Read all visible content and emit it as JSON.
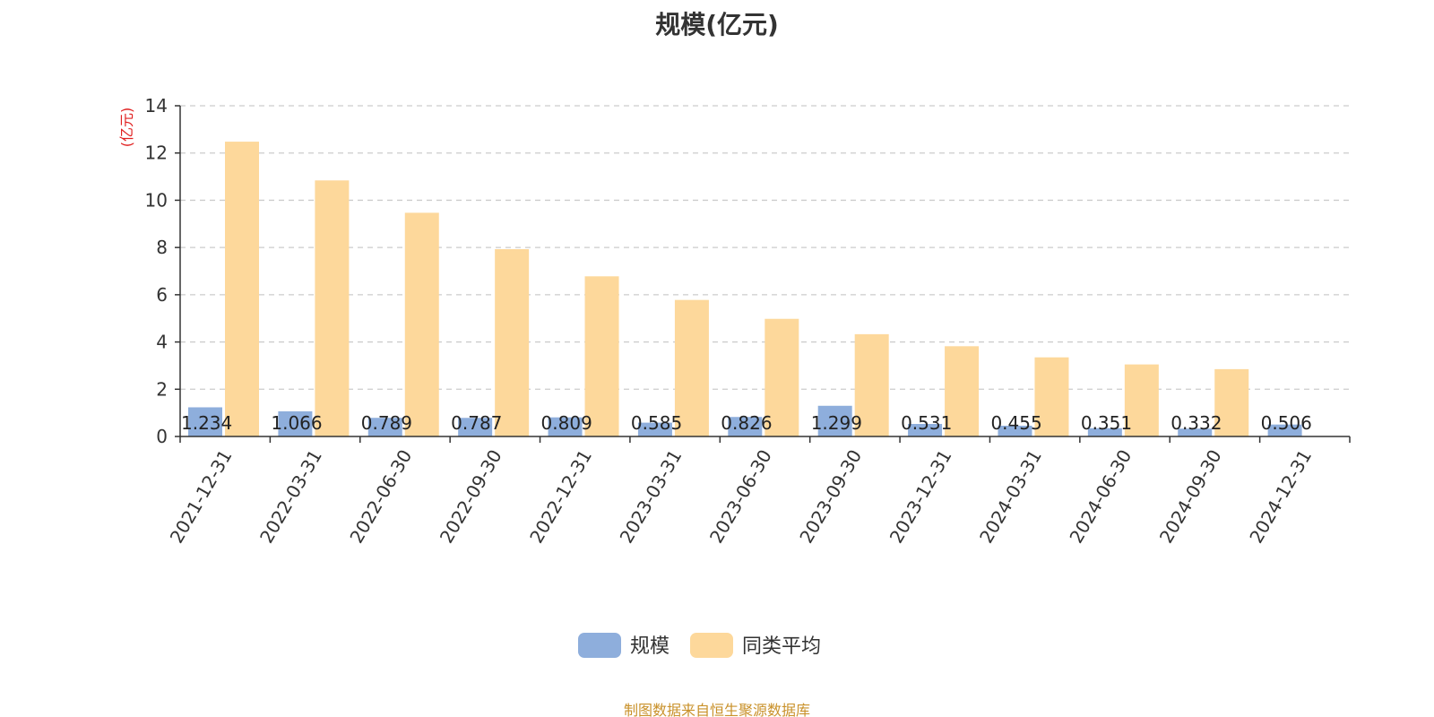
{
  "chart_data": {
    "type": "bar",
    "title": "规模(亿元)",
    "ylabel": "(亿元)",
    "xlabel": "",
    "ylim": [
      0,
      14
    ],
    "yticks": [
      0,
      2,
      4,
      6,
      8,
      10,
      12,
      14
    ],
    "grid": true,
    "legend_position": "bottom-center",
    "categories": [
      "2021-12-31",
      "2022-03-31",
      "2022-06-30",
      "2022-09-30",
      "2022-12-31",
      "2023-03-31",
      "2023-06-30",
      "2023-09-30",
      "2023-12-31",
      "2024-03-31",
      "2024-06-30",
      "2024-09-30",
      "2024-12-31"
    ],
    "series": [
      {
        "name": "规模",
        "color": "#8eaedc",
        "values": [
          1.234,
          1.066,
          0.789,
          0.787,
          0.809,
          0.585,
          0.826,
          1.299,
          0.531,
          0.455,
          0.351,
          0.332,
          0.506
        ],
        "data_labels": [
          "1.234",
          "1.066",
          "0.789",
          "0.787",
          "0.809",
          "0.585",
          "0.826",
          "1.299",
          "0.531",
          "0.455",
          "0.351",
          "0.332",
          "0.506"
        ]
      },
      {
        "name": "同类平均",
        "color": "#fdd89b",
        "values": [
          12.48,
          10.84,
          9.47,
          7.93,
          6.78,
          5.78,
          4.98,
          4.33,
          3.82,
          3.35,
          3.05,
          2.85,
          null
        ]
      }
    ]
  },
  "footer": {
    "source": "制图数据来自恒生聚源数据库"
  },
  "colors": {
    "axis": "#333333",
    "grid": "#cccccc",
    "unit": "#e02020",
    "source": "#c9912a"
  }
}
